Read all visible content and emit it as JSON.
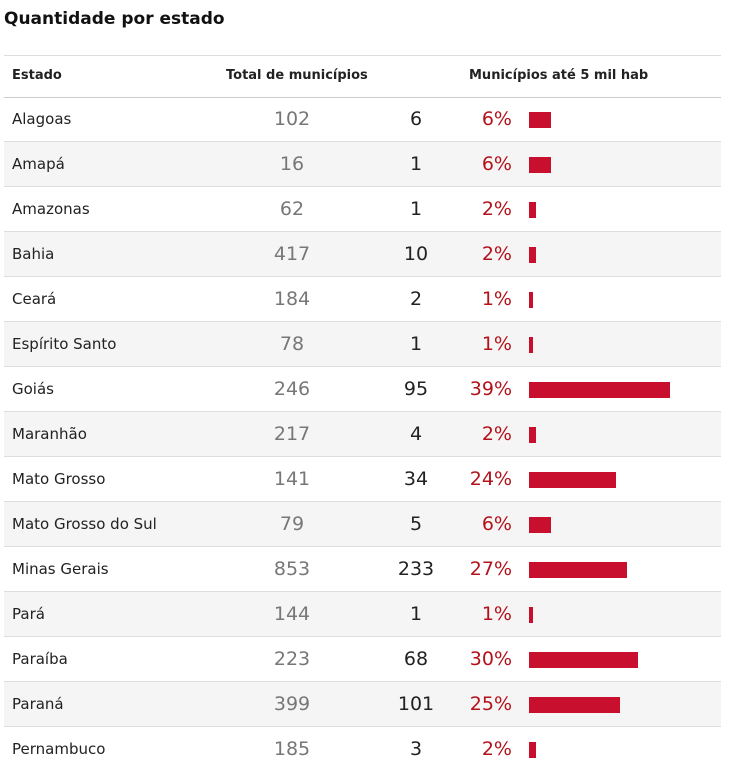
{
  "title": "Quantidade por estado",
  "table": {
    "headers": [
      "Estado",
      "Total de municípios",
      "Municípios até 5 mil hab"
    ],
    "bar_color": "#c8102e",
    "rows": [
      {
        "state": "Alagoas",
        "total": 102,
        "small": 6,
        "pct": 6,
        "pct_label": "6%"
      },
      {
        "state": "Amapá",
        "total": 16,
        "small": 1,
        "pct": 6,
        "pct_label": "6%"
      },
      {
        "state": "Amazonas",
        "total": 62,
        "small": 1,
        "pct": 2,
        "pct_label": "2%"
      },
      {
        "state": "Bahia",
        "total": 417,
        "small": 10,
        "pct": 2,
        "pct_label": "2%"
      },
      {
        "state": "Ceará",
        "total": 184,
        "small": 2,
        "pct": 1,
        "pct_label": "1%"
      },
      {
        "state": "Espírito Santo",
        "total": 78,
        "small": 1,
        "pct": 1,
        "pct_label": "1%"
      },
      {
        "state": "Goiás",
        "total": 246,
        "small": 95,
        "pct": 39,
        "pct_label": "39%"
      },
      {
        "state": "Maranhão",
        "total": 217,
        "small": 4,
        "pct": 2,
        "pct_label": "2%"
      },
      {
        "state": "Mato Grosso",
        "total": 141,
        "small": 34,
        "pct": 24,
        "pct_label": "24%"
      },
      {
        "state": "Mato Grosso do Sul",
        "total": 79,
        "small": 5,
        "pct": 6,
        "pct_label": "6%"
      },
      {
        "state": "Minas Gerais",
        "total": 853,
        "small": 233,
        "pct": 27,
        "pct_label": "27%"
      },
      {
        "state": "Pará",
        "total": 144,
        "small": 1,
        "pct": 1,
        "pct_label": "1%"
      },
      {
        "state": "Paraíba",
        "total": 223,
        "small": 68,
        "pct": 30,
        "pct_label": "30%"
      },
      {
        "state": "Paraná",
        "total": 399,
        "small": 101,
        "pct": 25,
        "pct_label": "25%"
      },
      {
        "state": "Pernambuco",
        "total": 185,
        "small": 3,
        "pct": 2,
        "pct_label": "2%"
      }
    ]
  }
}
